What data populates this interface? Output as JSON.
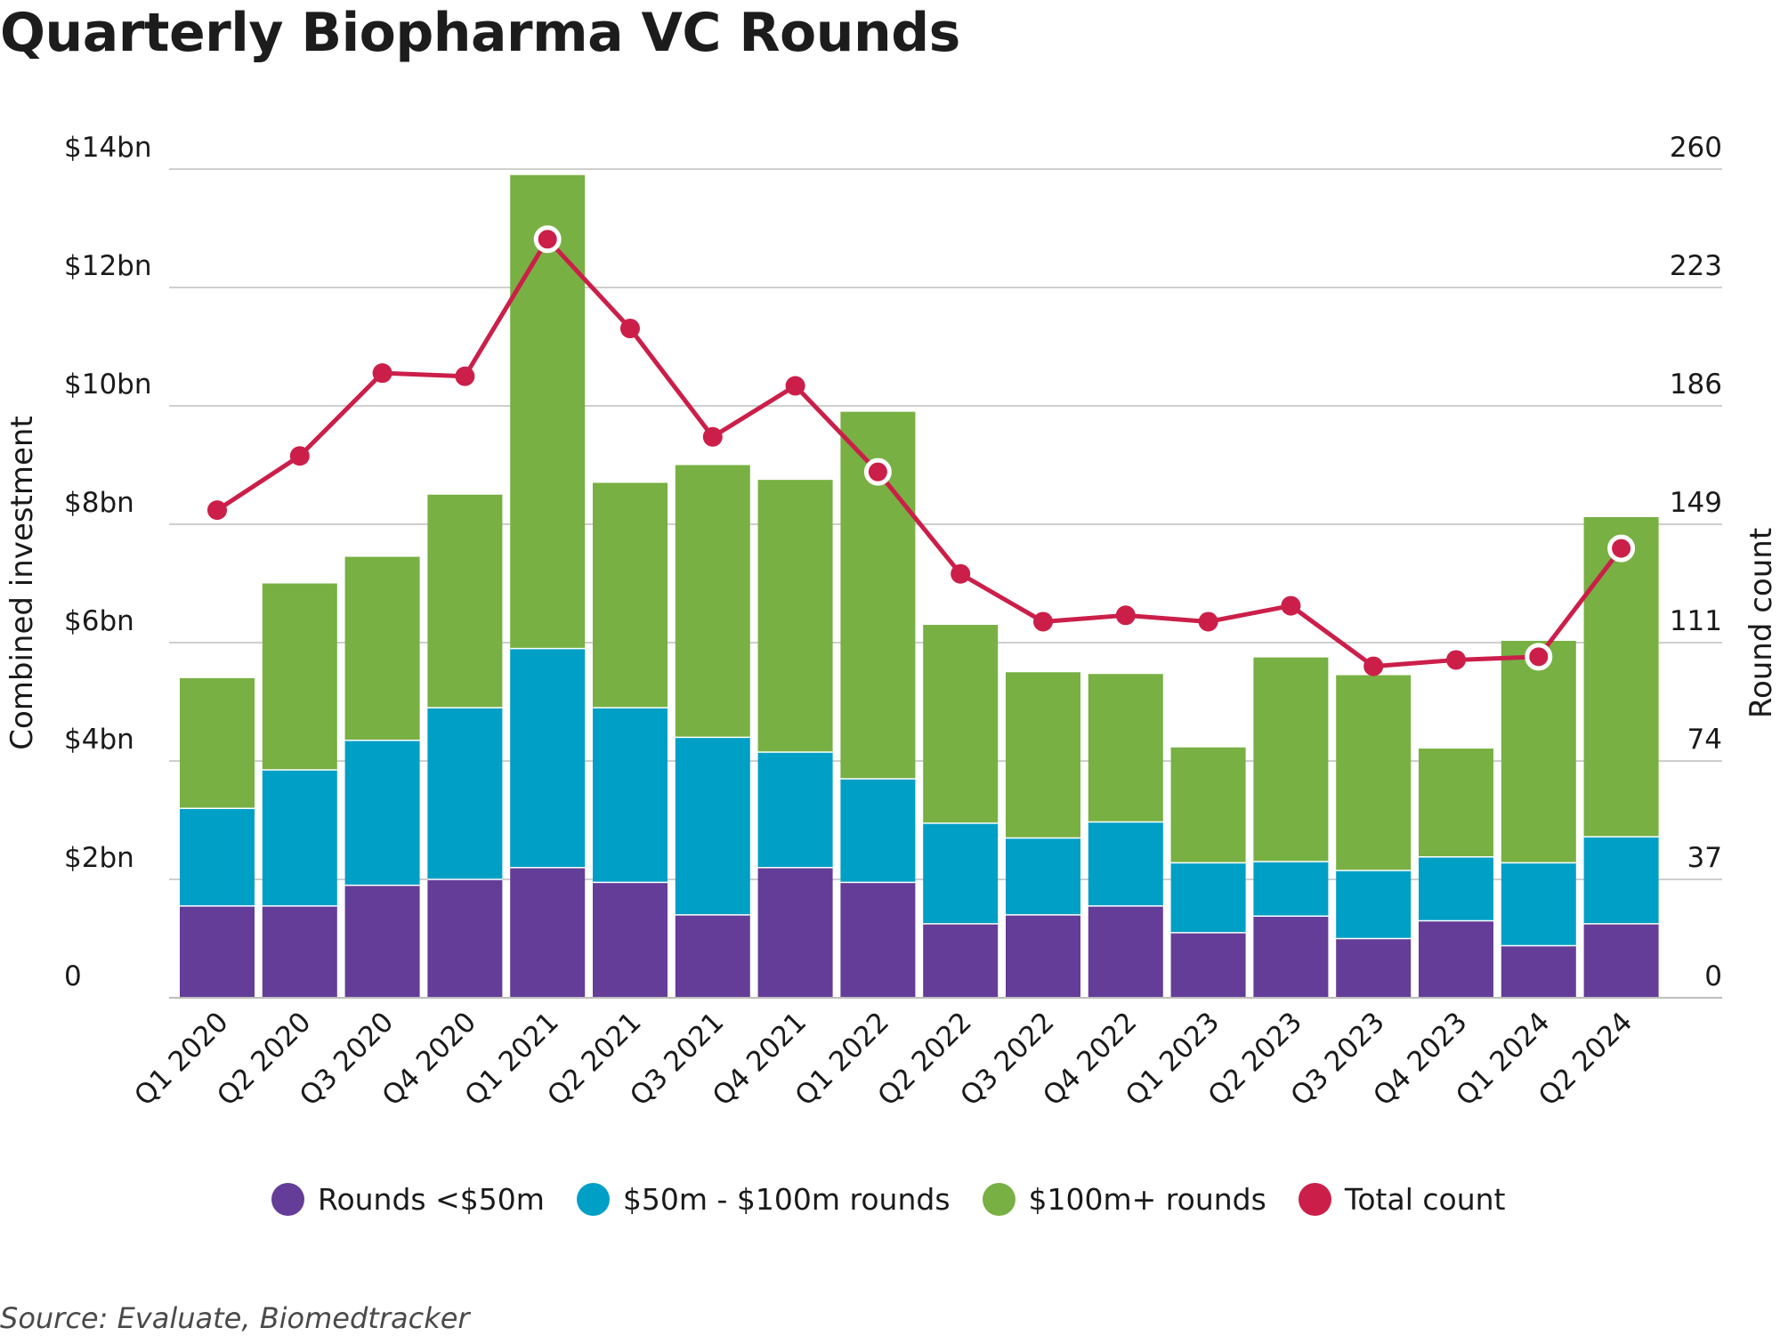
{
  "title": "Quarterly Biopharma VC Rounds",
  "source": "Source: Evaluate, Biomedtracker",
  "colors": {
    "rounds_lt_50m": "#643d98",
    "rounds_50_100m": "#009fc6",
    "rounds_100m_plus": "#78b043",
    "total_count": "#cb1f49",
    "grid": "#cfcfcf"
  },
  "legend": [
    {
      "label": "Rounds <$50m",
      "color": "#643d98"
    },
    {
      "label": "$50m - $100m rounds",
      "color": "#009fc6"
    },
    {
      "label": "$100m+ rounds",
      "color": "#78b043"
    },
    {
      "label": "Total count",
      "color": "#cb1f49"
    }
  ],
  "chart_data": {
    "type": "bar",
    "stacked": true,
    "title": "Quarterly Biopharma VC Rounds",
    "ylabel": "Combined investment",
    "y2label": "Round count",
    "ylim": [
      0,
      14
    ],
    "y2lim": [
      0,
      260
    ],
    "yticks": [
      "0",
      "$2bn",
      "$4bn",
      "$6bn",
      "$8bn",
      "$10bn",
      "$12bn",
      "$14bn"
    ],
    "y2ticks": [
      "0",
      "37",
      "74",
      "111",
      "149",
      "186",
      "223",
      "260"
    ],
    "categories": [
      "Q1 2020",
      "Q2 2020",
      "Q3 2020",
      "Q4 2020",
      "Q1 2021",
      "Q2 2021",
      "Q3 2021",
      "Q4 2021",
      "Q1 2022",
      "Q2 2022",
      "Q3 2022",
      "Q4 2022",
      "Q1 2023",
      "Q2 2023",
      "Q3 2023",
      "Q4 2023",
      "Q1 2024",
      "Q2 2024"
    ],
    "series": [
      {
        "name": "Rounds <$50m",
        "axis": "left",
        "color": "#643d98",
        "values": [
          1.55,
          1.55,
          1.9,
          2.0,
          2.2,
          1.95,
          1.4,
          2.2,
          1.95,
          1.25,
          1.4,
          1.55,
          1.1,
          1.38,
          1.0,
          1.3,
          0.88,
          1.25
        ]
      },
      {
        "name": "$50m - $100m rounds",
        "axis": "left",
        "color": "#009fc6",
        "values": [
          1.65,
          2.3,
          2.45,
          2.9,
          3.7,
          2.95,
          3.0,
          1.95,
          1.75,
          1.7,
          1.3,
          1.42,
          1.18,
          0.92,
          1.15,
          1.08,
          1.4,
          1.47
        ]
      },
      {
        "name": "$100m+ rounds",
        "axis": "left",
        "color": "#78b043",
        "values": [
          2.2,
          3.15,
          3.1,
          3.6,
          8.0,
          3.8,
          4.6,
          4.6,
          6.2,
          3.35,
          2.8,
          2.5,
          1.95,
          3.45,
          3.3,
          1.83,
          3.75,
          5.4
        ]
      },
      {
        "name": "Total count",
        "type": "line",
        "axis": "right",
        "color": "#cb1f49",
        "values": [
          153,
          170,
          196,
          195,
          238,
          210,
          176,
          192,
          165,
          133,
          118,
          120,
          118,
          123,
          104,
          106,
          107,
          141
        ]
      }
    ],
    "highlighted_points": [
      "Q1 2021",
      "Q1 2022",
      "Q1 2024",
      "Q2 2024"
    ],
    "grid": true,
    "legend_position": "bottom"
  }
}
